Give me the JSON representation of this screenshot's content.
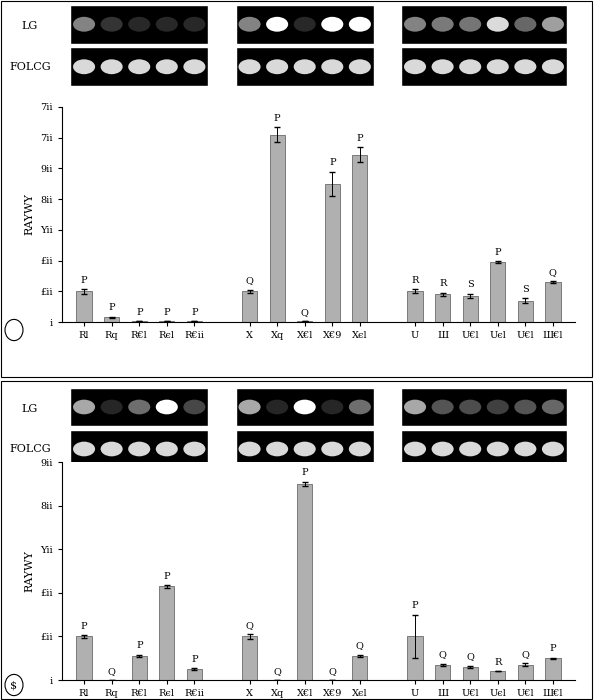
{
  "chart_data": [
    {
      "type": "bar",
      "gel_rows": [
        "LG",
        "FOLCG"
      ],
      "y_label": "RAYWY",
      "categories": [
        "Rl",
        "Rq",
        "R€l",
        "Rєl",
        "R€ii",
        null,
        "X",
        "Xq",
        "X€l",
        "X€9",
        "Xєl",
        null,
        "U",
        "Ш",
        "U€l",
        "Uєl",
        "U€l",
        "Ш€l"
      ],
      "values": [
        100,
        15,
        2,
        2,
        2,
        null,
        100,
        610,
        2,
        450,
        545,
        null,
        100,
        90,
        85,
        195,
        70,
        130
      ],
      "errors": [
        8,
        2,
        0,
        0,
        0,
        null,
        5,
        25,
        0,
        40,
        25,
        null,
        6,
        6,
        7,
        4,
        8,
        3
      ],
      "bar_letters": [
        "P",
        "P",
        "P",
        "P",
        "P",
        null,
        "Q",
        "P",
        "Q",
        "P",
        "P",
        null,
        "R",
        "R",
        "S",
        "P",
        "S",
        "Q"
      ],
      "color": "#b0b0b0",
      "ylim": [
        0,
        700
      ],
      "yticks": [
        {
          "value": 0,
          "label": "i"
        },
        {
          "value": 100,
          "label": "£ii"
        },
        {
          "value": 200,
          "label": "£ii"
        },
        {
          "value": 300,
          "label": "Yii"
        },
        {
          "value": 400,
          "label": "8ii"
        },
        {
          "value": 500,
          "label": "9ii"
        },
        {
          "value": 600,
          "label": "7ii"
        },
        {
          "value": 700,
          "label": "7ii"
        }
      ],
      "grid": false
    },
    {
      "type": "bar",
      "panel_label": "$",
      "gel_rows": [
        "LG",
        "FOLCG"
      ],
      "y_label": "RAYWY",
      "categories": [
        "Rl",
        "Rq",
        "R€l",
        "Rєl",
        "R€ii",
        null,
        "X",
        "Xq",
        "X€l",
        "X€9",
        "Xєl",
        null,
        "U",
        "Ш",
        "U€l",
        "Uєl",
        "U€l",
        "Ш€l"
      ],
      "values": [
        100,
        0,
        55,
        215,
        25,
        null,
        100,
        0,
        450,
        0,
        55,
        null,
        100,
        35,
        30,
        20,
        35,
        50
      ],
      "errors": [
        3,
        0,
        3,
        3,
        2,
        null,
        5,
        0,
        5,
        0,
        3,
        null,
        50,
        2,
        3,
        0,
        4,
        1
      ],
      "bar_letters": [
        "P",
        "Q",
        "P",
        "P",
        "P",
        null,
        "Q",
        "Q",
        "P",
        "Q",
        "Q",
        null,
        "P",
        "Q",
        "Q",
        "R",
        "Q",
        "P"
      ],
      "color": "#b0b0b0",
      "ylim": [
        0,
        500
      ],
      "yticks": [
        {
          "value": 0,
          "label": "i"
        },
        {
          "value": 100,
          "label": "£ii"
        },
        {
          "value": 200,
          "label": "£ii"
        },
        {
          "value": 300,
          "label": "Yii"
        },
        {
          "value": 400,
          "label": "8ii"
        },
        {
          "value": 500,
          "label": "9ii"
        }
      ],
      "grid": false
    }
  ]
}
